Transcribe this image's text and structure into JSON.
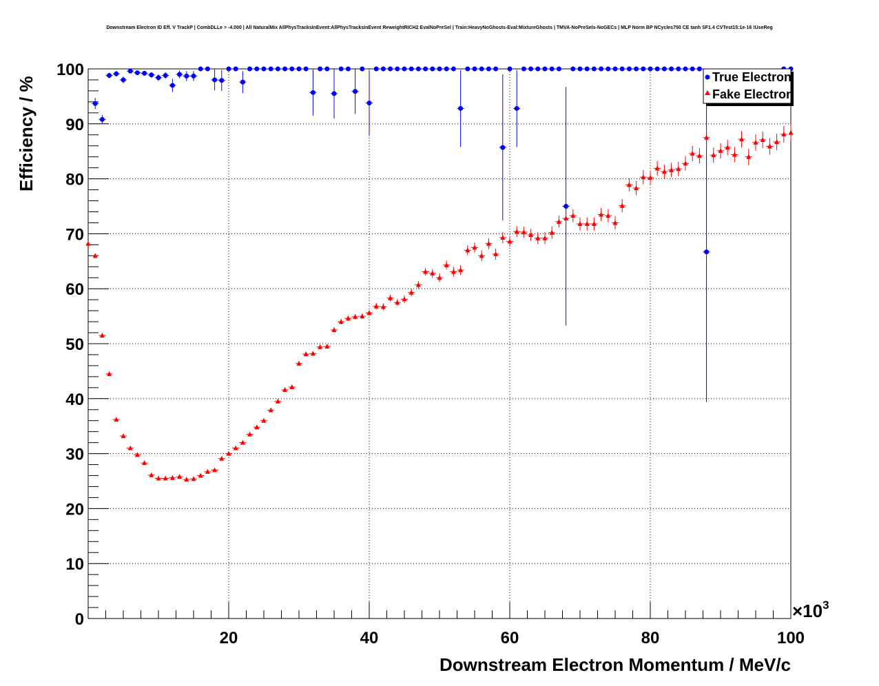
{
  "chart_data": {
    "type": "scatter",
    "title": "Downstream Electron ID Eff. V TrackP | CombDLLe > -4.000 | All NaturalMix AllPhysTracksInEvent:AllPhysTracksInEvent ReweightRICH2 EvalNoPreSel | Train:HeavyNoGhosts-Eval:MixtureGhosts | TMVA-NoPreSels-NoGECs | MLP Norm BP NCycles750 CE tanh SF1.4 CVTest15:1e-16 !UseReg",
    "xlabel": "Downstream Electron Momentum / MeV/c",
    "ylabel": "Efficiency / %",
    "x_multiplier": "×10",
    "x_multiplier_exp": "3",
    "xlim": [
      0,
      100
    ],
    "ylim": [
      0,
      100
    ],
    "x_ticks": [
      20,
      40,
      60,
      80,
      100
    ],
    "y_ticks": [
      0,
      10,
      20,
      30,
      40,
      50,
      60,
      70,
      80,
      90,
      100
    ],
    "grid": true,
    "legend_position": "top-right",
    "series": [
      {
        "name": "True Electron",
        "color": "#0000ff",
        "marker": "circle",
        "x": [
          1,
          2,
          3,
          4,
          5,
          6,
          7,
          8,
          9,
          10,
          11,
          12,
          13,
          14,
          15,
          16,
          17,
          18,
          19,
          20,
          21,
          22,
          23,
          24,
          25,
          26,
          27,
          28,
          29,
          30,
          31,
          32,
          33,
          34,
          35,
          36,
          37,
          38,
          39,
          40,
          41,
          42,
          43,
          44,
          45,
          46,
          47,
          48,
          49,
          50,
          51,
          52,
          53,
          54,
          55,
          56,
          57,
          58,
          59,
          60,
          61,
          62,
          63,
          64,
          65,
          66,
          67,
          68,
          69,
          70,
          71,
          72,
          73,
          74,
          75,
          76,
          77,
          78,
          79,
          80,
          81,
          82,
          83,
          84,
          85,
          86,
          87,
          88,
          99,
          100
        ],
        "y": [
          93.7,
          90.8,
          98.8,
          99.1,
          98.0,
          99.6,
          99.3,
          99.2,
          98.9,
          98.4,
          98.8,
          97.0,
          99.0,
          98.7,
          98.7,
          100,
          100,
          98.0,
          97.9,
          100,
          100,
          97.6,
          100,
          100,
          100,
          100,
          100,
          100,
          100,
          100,
          100,
          95.7,
          100,
          100,
          95.5,
          100,
          100,
          95.9,
          100,
          93.8,
          100,
          100,
          100,
          100,
          100,
          100,
          100,
          100,
          100,
          100,
          100,
          100,
          92.8,
          100,
          100,
          100,
          100,
          100,
          85.7,
          100,
          92.8,
          100,
          100,
          100,
          100,
          100,
          100,
          75.0,
          100,
          100,
          100,
          100,
          100,
          100,
          100,
          100,
          100,
          100,
          100,
          100,
          100,
          100,
          100,
          100,
          100,
          100,
          100,
          66.7,
          100,
          100
        ],
        "err": [
          1.0,
          0.8,
          0.5,
          0.5,
          0.6,
          0.3,
          0.4,
          0.4,
          0.5,
          0.6,
          0.6,
          1.2,
          0.7,
          0.9,
          0.9,
          0,
          0,
          1.9,
          1.9,
          0,
          0,
          2.0,
          0,
          0,
          0,
          0,
          0,
          0,
          0,
          0,
          0,
          4.2,
          0,
          0,
          4.5,
          0,
          0,
          4.1,
          0,
          6.0,
          0,
          0,
          0,
          0,
          0,
          0,
          0,
          0,
          0,
          0,
          0,
          0,
          7.0,
          0,
          0,
          0,
          0,
          0,
          13.3,
          0,
          7.0,
          0,
          0,
          0,
          0,
          0,
          0,
          21.7,
          0,
          0,
          0,
          0,
          0,
          0,
          0,
          0,
          0,
          0,
          0,
          0,
          0,
          0,
          0,
          0,
          0,
          0,
          0,
          27.3,
          0,
          0
        ]
      },
      {
        "name": "Fake Electron",
        "color": "#ff0000",
        "marker": "triangle",
        "x": [
          0,
          1,
          2,
          3,
          4,
          5,
          6,
          7,
          8,
          9,
          10,
          11,
          12,
          13,
          14,
          15,
          16,
          17,
          18,
          19,
          20,
          21,
          22,
          23,
          24,
          25,
          26,
          27,
          28,
          29,
          30,
          31,
          32,
          33,
          34,
          35,
          36,
          37,
          38,
          39,
          40,
          41,
          42,
          43,
          44,
          45,
          46,
          47,
          48,
          49,
          50,
          51,
          52,
          53,
          54,
          55,
          56,
          57,
          58,
          59,
          60,
          61,
          62,
          63,
          64,
          65,
          66,
          67,
          68,
          69,
          70,
          71,
          72,
          73,
          74,
          75,
          76,
          77,
          78,
          79,
          80,
          81,
          82,
          83,
          84,
          85,
          86,
          87,
          88,
          89,
          90,
          91,
          92,
          93,
          94,
          95,
          96,
          97,
          98,
          99,
          100
        ],
        "y": [
          68.2,
          66.0,
          51.5,
          44.5,
          36.2,
          33.2,
          31.0,
          29.8,
          28.3,
          26.1,
          25.5,
          25.5,
          25.6,
          25.8,
          25.3,
          25.4,
          26.0,
          26.7,
          27.0,
          29.1,
          30.0,
          31.0,
          32.0,
          33.5,
          34.8,
          36.0,
          37.9,
          39.5,
          41.6,
          42.1,
          46.4,
          48.1,
          48.2,
          49.4,
          49.5,
          52.5,
          54.0,
          54.6,
          54.9,
          55.0,
          55.6,
          56.8,
          56.7,
          58.3,
          57.5,
          58.1,
          59.3,
          60.7,
          63.1,
          62.8,
          62.0,
          64.3,
          63.1,
          63.4,
          67.0,
          67.5,
          66.0,
          68.2,
          66.3,
          69.3,
          68.6,
          70.4,
          70.3,
          69.8,
          69.2,
          69.2,
          70.2,
          72.2,
          72.8,
          73.3,
          71.8,
          71.8,
          71.8,
          73.5,
          73.3,
          72.0,
          75.1,
          78.9,
          78.3,
          80.3,
          80.2,
          81.9,
          81.3,
          81.6,
          81.8,
          82.8,
          84.6,
          84.2,
          87.5,
          84.3,
          85.1,
          85.7,
          84.4,
          87.2,
          84.0,
          86.6,
          87.1,
          85.9,
          86.7,
          88.1,
          88.4
        ],
        "err": [
          0.4,
          0.4,
          0.4,
          0.4,
          0.3,
          0.3,
          0.3,
          0.3,
          0.3,
          0.3,
          0.3,
          0.3,
          0.3,
          0.3,
          0.3,
          0.3,
          0.3,
          0.3,
          0.3,
          0.3,
          0.3,
          0.3,
          0.3,
          0.3,
          0.3,
          0.3,
          0.3,
          0.3,
          0.3,
          0.3,
          0.4,
          0.4,
          0.4,
          0.4,
          0.4,
          0.5,
          0.5,
          0.5,
          0.5,
          0.5,
          0.5,
          0.6,
          0.6,
          0.6,
          0.6,
          0.7,
          0.7,
          0.7,
          0.7,
          0.8,
          0.8,
          0.8,
          0.9,
          0.9,
          0.9,
          0.9,
          1.0,
          1.0,
          1.0,
          1.0,
          1.0,
          1.0,
          1.0,
          1.1,
          1.1,
          1.1,
          1.1,
          1.1,
          1.1,
          1.2,
          1.2,
          1.2,
          1.2,
          1.2,
          1.2,
          1.2,
          1.2,
          1.2,
          1.3,
          1.3,
          1.3,
          1.3,
          1.3,
          1.3,
          1.3,
          1.3,
          1.4,
          1.4,
          1.4,
          1.4,
          1.4,
          1.4,
          1.4,
          1.5,
          1.5,
          1.5,
          1.5,
          1.5,
          1.5,
          1.5,
          1.5
        ]
      }
    ]
  }
}
